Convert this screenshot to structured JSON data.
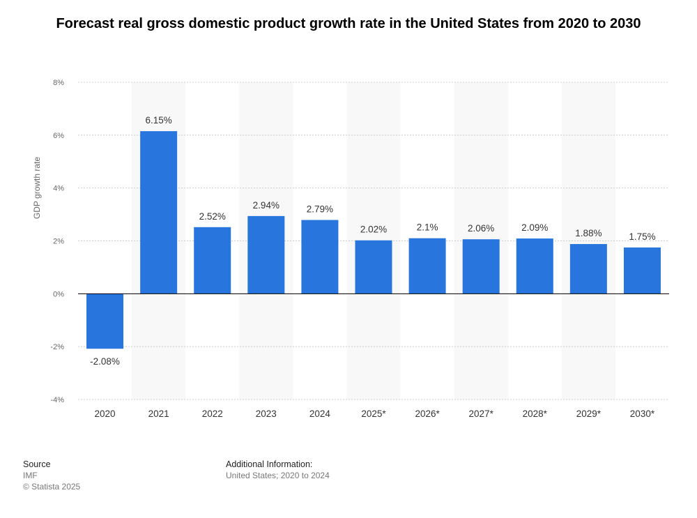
{
  "chart_data": {
    "type": "bar",
    "title": "Forecast real gross domestic product growth rate in the United States from 2020 to 2030",
    "y_label": "GDP growth rate",
    "categories": [
      "2020",
      "2021",
      "2022",
      "2023",
      "2024",
      "2025*",
      "2026*",
      "2027*",
      "2028*",
      "2029*",
      "2030*"
    ],
    "values": [
      -2.08,
      6.15,
      2.52,
      2.94,
      2.79,
      2.02,
      2.1,
      2.06,
      2.09,
      1.88,
      1.75
    ],
    "value_labels": [
      "-2.08%",
      "6.15%",
      "2.52%",
      "2.94%",
      "2.79%",
      "2.02%",
      "2.1%",
      "2.06%",
      "2.09%",
      "1.88%",
      "1.75%"
    ],
    "color": "#2876dd",
    "ylim": [
      -4,
      8
    ],
    "yticks": [
      {
        "value": -4,
        "label": "-4%"
      },
      {
        "value": -2,
        "label": "-2%"
      },
      {
        "value": 0,
        "label": "0%"
      },
      {
        "value": 2,
        "label": "2%"
      },
      {
        "value": 4,
        "label": "4%"
      },
      {
        "value": 6,
        "label": "6%"
      },
      {
        "value": 8,
        "label": "8%"
      }
    ],
    "grid": true
  },
  "footer": {
    "source_heading": "Source",
    "source": "IMF",
    "copyright": "© Statista 2025",
    "info_heading": "Additional Information:",
    "info": "United States; 2020 to 2024"
  }
}
